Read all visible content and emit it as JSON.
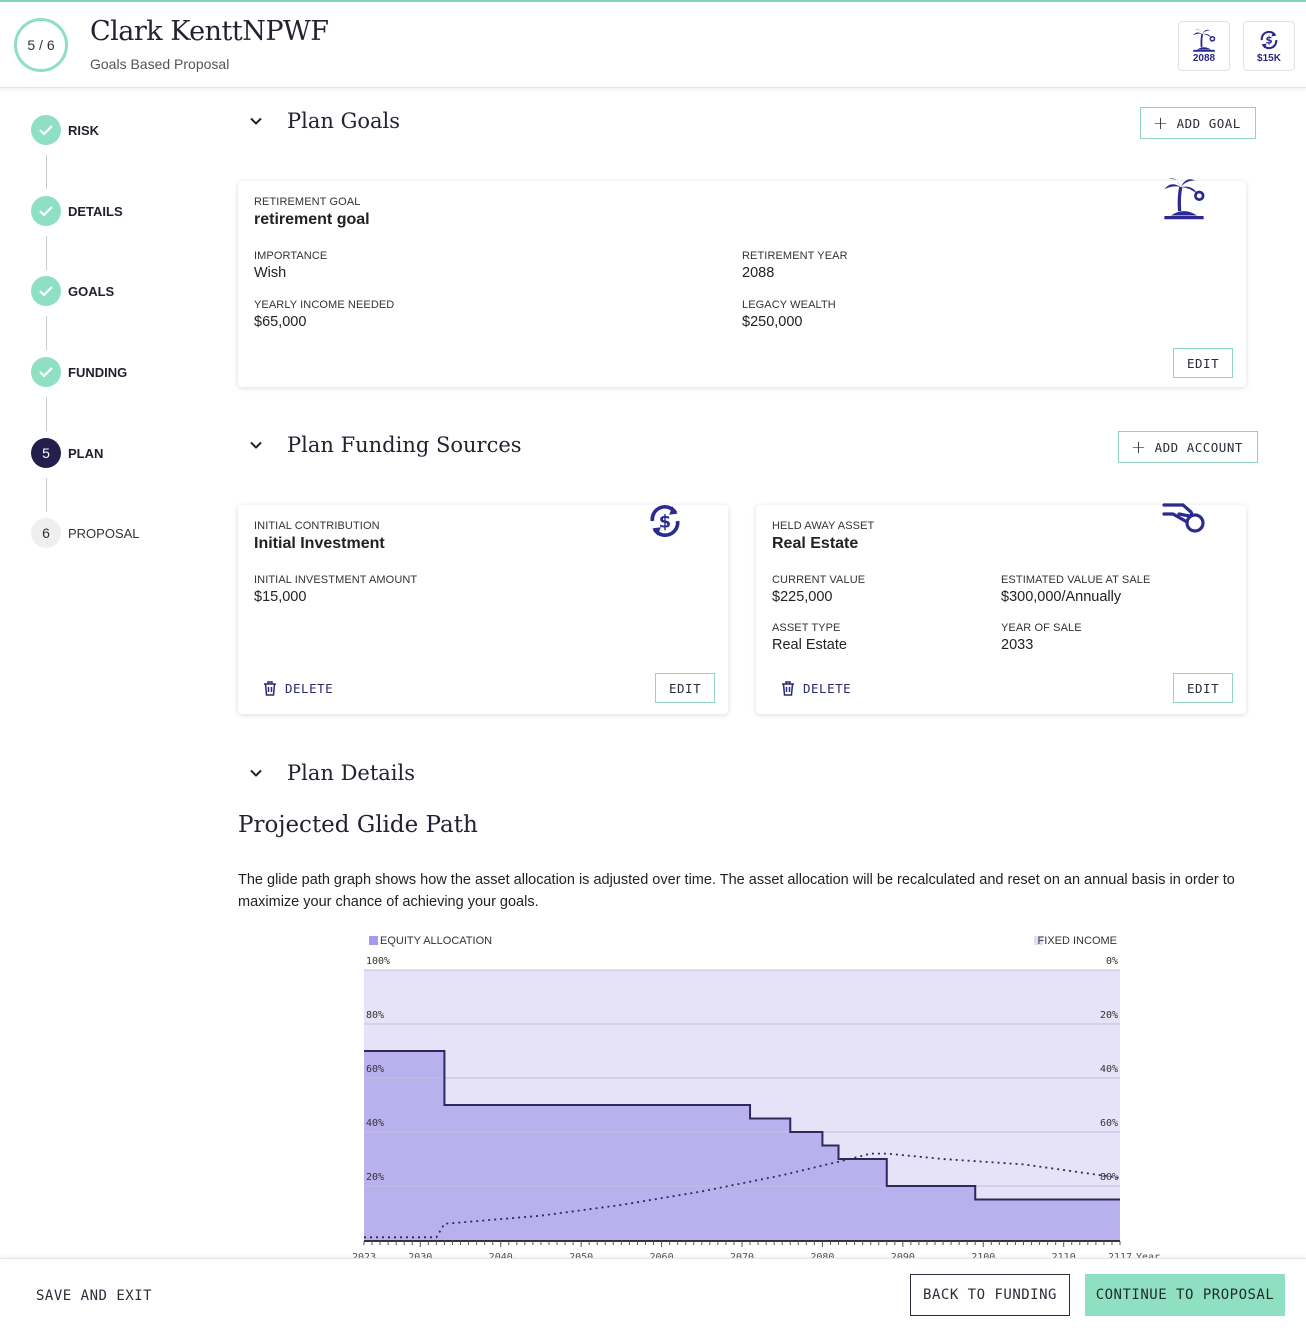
{
  "header": {
    "progress": "5 / 6",
    "client_name": "Clark KenttNPWF",
    "subtitle": "Goals Based Proposal",
    "badges": [
      {
        "icon": "palm-island-icon",
        "label": "2088"
      },
      {
        "icon": "dollar-cycle-icon",
        "label": "$15K"
      }
    ]
  },
  "sidebar": {
    "steps": [
      {
        "label": "RISK",
        "state": "done"
      },
      {
        "label": "DETAILS",
        "state": "done"
      },
      {
        "label": "GOALS",
        "state": "done"
      },
      {
        "label": "FUNDING",
        "state": "done"
      },
      {
        "label": "PLAN",
        "state": "current",
        "number": "5"
      },
      {
        "label": "PROPOSAL",
        "state": "future",
        "number": "6"
      }
    ]
  },
  "goals": {
    "title": "Plan Goals",
    "add_label": "ADD GOAL",
    "card": {
      "type_caption": "RETIREMENT GOAL",
      "name": "retirement goal",
      "importance_caption": "IMPORTANCE",
      "importance": "Wish",
      "year_caption": "RETIREMENT YEAR",
      "year": "2088",
      "income_caption": "YEARLY INCOME NEEDED",
      "income": "$65,000",
      "legacy_caption": "LEGACY WEALTH",
      "legacy": "$250,000",
      "edit_label": "EDIT"
    }
  },
  "funding": {
    "title": "Plan Funding Sources",
    "add_label": "ADD ACCOUNT",
    "initial": {
      "type_caption": "INITIAL CONTRIBUTION",
      "name": "Initial Investment",
      "amount_caption": "INITIAL INVESTMENT AMOUNT",
      "amount": "$15,000",
      "delete_label": "DELETE",
      "edit_label": "EDIT"
    },
    "held_away": {
      "type_caption": "HELD AWAY ASSET",
      "name": "Real Estate",
      "current_caption": "CURRENT VALUE",
      "current": "$225,000",
      "sale_caption": "ESTIMATED VALUE AT SALE",
      "sale": "$300,000/Annually",
      "asset_type_caption": "ASSET TYPE",
      "asset_type": "Real Estate",
      "year_caption": "YEAR OF SALE",
      "year": "2033",
      "delete_label": "DELETE",
      "edit_label": "EDIT"
    }
  },
  "details": {
    "title": "Plan Details",
    "glide_title": "Projected Glide Path",
    "description": "The glide path graph shows how the asset allocation is adjusted over time. The asset allocation will be recalculated and reset on an annual basis in order to maximize your chance of achieving your goals."
  },
  "chart_data": {
    "type": "area",
    "legend": {
      "left": "EQUITY ALLOCATION",
      "right": "FIXED INCOME"
    },
    "x_unit": "Year",
    "x_ticks": [
      "2023",
      "2030",
      "2040",
      "2050",
      "2060",
      "2070",
      "2080",
      "2090",
      "2100",
      "2110",
      "2117"
    ],
    "y_left_ticks": [
      "100%",
      "80%",
      "60%",
      "40%",
      "20%"
    ],
    "y_right_ticks": [
      "0%",
      "20%",
      "40%",
      "60%",
      "80%"
    ],
    "xlim": [
      2023,
      2117
    ],
    "ylim": [
      0,
      100
    ],
    "equity_step": [
      {
        "from": 2023,
        "to": 2033,
        "value": 70
      },
      {
        "from": 2033,
        "to": 2071,
        "value": 50
      },
      {
        "from": 2071,
        "to": 2076,
        "value": 45
      },
      {
        "from": 2076,
        "to": 2080,
        "value": 40
      },
      {
        "from": 2080,
        "to": 2082,
        "value": 35
      },
      {
        "from": 2082,
        "to": 2088,
        "value": 30
      },
      {
        "from": 2088,
        "to": 2099,
        "value": 20
      },
      {
        "from": 2099,
        "to": 2117,
        "value": 15
      }
    ],
    "projection_dotted": [
      {
        "x": 2023,
        "y": 1
      },
      {
        "x": 2032,
        "y": 1
      },
      {
        "x": 2033,
        "y": 6
      },
      {
        "x": 2045,
        "y": 9
      },
      {
        "x": 2055,
        "y": 13
      },
      {
        "x": 2065,
        "y": 18
      },
      {
        "x": 2075,
        "y": 24
      },
      {
        "x": 2082,
        "y": 29
      },
      {
        "x": 2086,
        "y": 32
      },
      {
        "x": 2088,
        "y": 32
      },
      {
        "x": 2095,
        "y": 30
      },
      {
        "x": 2105,
        "y": 28
      },
      {
        "x": 2117,
        "y": 23
      }
    ],
    "colors": {
      "equity": "#b9b0ee",
      "fixed_income": "#e6e2f7",
      "line": "#2c2a5a",
      "legend_equity": "#a79ae6",
      "legend_fixed": "#e1ddf4"
    }
  },
  "footer": {
    "save_label": "SAVE AND EXIT",
    "back_label": "BACK TO FUNDING",
    "continue_label": "CONTINUE TO PROPOSAL"
  }
}
